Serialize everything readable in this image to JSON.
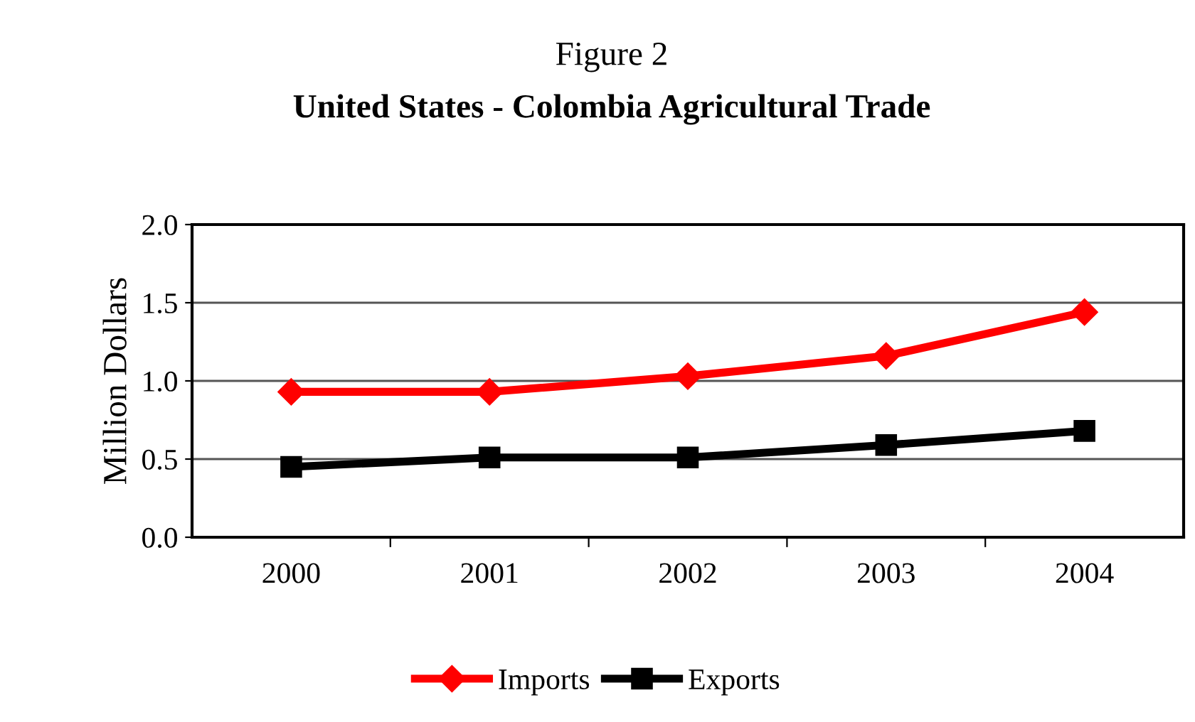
{
  "chart_data": {
    "type": "line",
    "title": "Figure 2",
    "subtitle": "United States - Colombia Agricultural Trade",
    "ylabel": "Million Dollars",
    "categories": [
      "2000",
      "2001",
      "2002",
      "2003",
      "2004"
    ],
    "series": [
      {
        "name": "Imports",
        "color": "#ff0000",
        "marker": "diamond",
        "values": [
          0.93,
          0.93,
          1.03,
          1.16,
          1.44
        ]
      },
      {
        "name": "Exports",
        "color": "#000000",
        "marker": "square",
        "values": [
          0.45,
          0.51,
          0.51,
          0.59,
          0.68
        ]
      }
    ],
    "ylim": [
      0,
      2
    ],
    "yticks": [
      {
        "value": 0,
        "label": "0.0"
      },
      {
        "value": 0.5,
        "label": "0.5"
      },
      {
        "value": 1,
        "label": "1.0"
      },
      {
        "value": 1.5,
        "label": "1.5"
      },
      {
        "value": 2,
        "label": "2.0"
      }
    ],
    "grid": "y",
    "legend": "bottom"
  }
}
